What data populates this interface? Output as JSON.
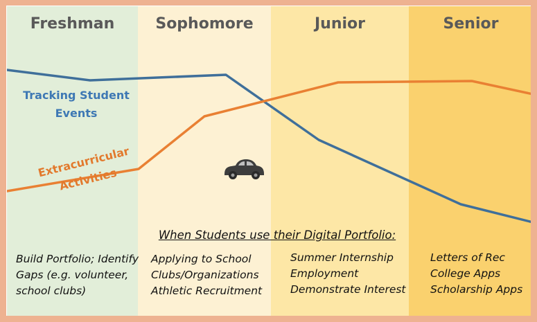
{
  "columns": [
    {
      "header": "Freshman",
      "color": "#e2eed9",
      "lines": [
        "Build Portfolio; Identify",
        "Gaps (e.g. volunteer,",
        "school clubs)"
      ]
    },
    {
      "header": "Sophomore",
      "color": "#fdf1d3",
      "lines": [
        "Applying to School",
        "Clubs/Organizations",
        "Athletic Recruitment"
      ]
    },
    {
      "header": "Junior",
      "color": "#fde7a6",
      "lines": [
        "Summer Internship",
        "Employment",
        "Demonstrate Interest"
      ]
    },
    {
      "header": "Senior",
      "color": "#fad16e",
      "lines": [
        "Letters of Rec",
        "College Apps",
        "Scholarship Apps"
      ]
    }
  ],
  "series": [
    {
      "name_line1": "Tracking Student",
      "name_line2": "Events",
      "color": "#3f6f9a"
    },
    {
      "name_line1": "Extracurricular",
      "name_line2": "Activities",
      "color": "#e98033"
    }
  ],
  "portfolio_heading": "When Students use their Digital Portfolio:",
  "icons": {
    "car": "car-icon"
  },
  "colors": {
    "border": "#eeb291",
    "header_text": "#595959",
    "tracking_label": "#3e78b4",
    "extracurricular_label": "#e2792c"
  }
}
